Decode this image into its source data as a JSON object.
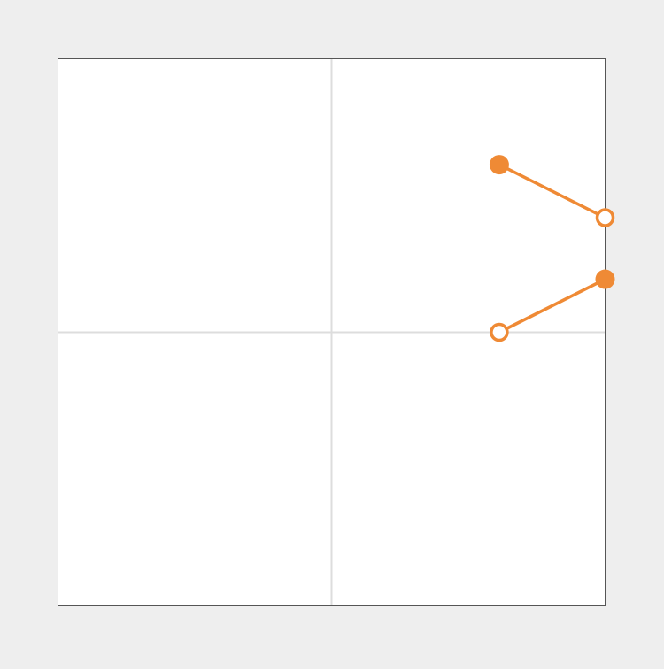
{
  "chart_data": {
    "type": "line",
    "xlim": [
      -1,
      1
    ],
    "ylim": [
      -1,
      1
    ],
    "grid": true,
    "gridlines": {
      "x": [
        0
      ],
      "y": [
        0
      ]
    },
    "series": [
      {
        "points": [
          {
            "x": 0.613,
            "y": 0.613,
            "marker": "filled"
          },
          {
            "x": 1.0,
            "y": 0.419,
            "marker": "open"
          }
        ]
      },
      {
        "points": [
          {
            "x": 0.613,
            "y": 0.0,
            "marker": "open"
          },
          {
            "x": 1.0,
            "y": 0.194,
            "marker": "filled"
          }
        ]
      }
    ]
  },
  "colors": {
    "background": "#eeeeee",
    "plot_background": "#ffffff",
    "frame": "#555555",
    "grid": "#dddddd",
    "accent": "#ef8a35"
  }
}
